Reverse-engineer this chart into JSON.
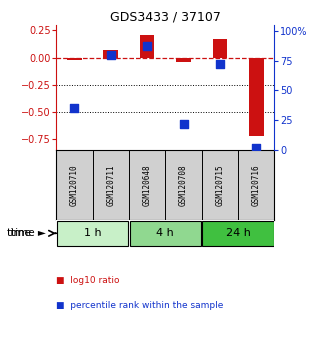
{
  "title": "GDS3433 / 37107",
  "samples": [
    "GSM120710",
    "GSM120711",
    "GSM120648",
    "GSM120708",
    "GSM120715",
    "GSM120716"
  ],
  "groups": [
    {
      "label": "1 h",
      "indices": [
        0,
        1
      ],
      "color": "#c8f0c8"
    },
    {
      "label": "4 h",
      "indices": [
        2,
        3
      ],
      "color": "#90d890"
    },
    {
      "label": "24 h",
      "indices": [
        4,
        5
      ],
      "color": "#40c040"
    }
  ],
  "log10_ratio": [
    -0.02,
    0.065,
    0.21,
    -0.04,
    0.17,
    -0.72
  ],
  "percentile_rank": [
    35,
    80,
    87,
    22,
    72,
    2
  ],
  "ylim_left": [
    -0.85,
    0.3
  ],
  "ylim_right": [
    0,
    105
  ],
  "right_ticks": [
    0,
    25,
    50,
    75,
    100
  ],
  "right_tick_labels": [
    "0",
    "25",
    "50",
    "75",
    "100%"
  ],
  "left_ticks": [
    -0.75,
    -0.5,
    -0.25,
    0,
    0.25
  ],
  "hlines": [
    -0.5,
    -0.25
  ],
  "bar_color": "#cc1111",
  "dot_color": "#1133cc",
  "bar_width": 0.4,
  "dot_size": 28,
  "legend_bar_label": "log10 ratio",
  "legend_dot_label": "percentile rank within the sample",
  "time_label": "time",
  "background_color": "#ffffff",
  "plot_bg": "#ffffff",
  "sample_bg": "#d0d0d0"
}
